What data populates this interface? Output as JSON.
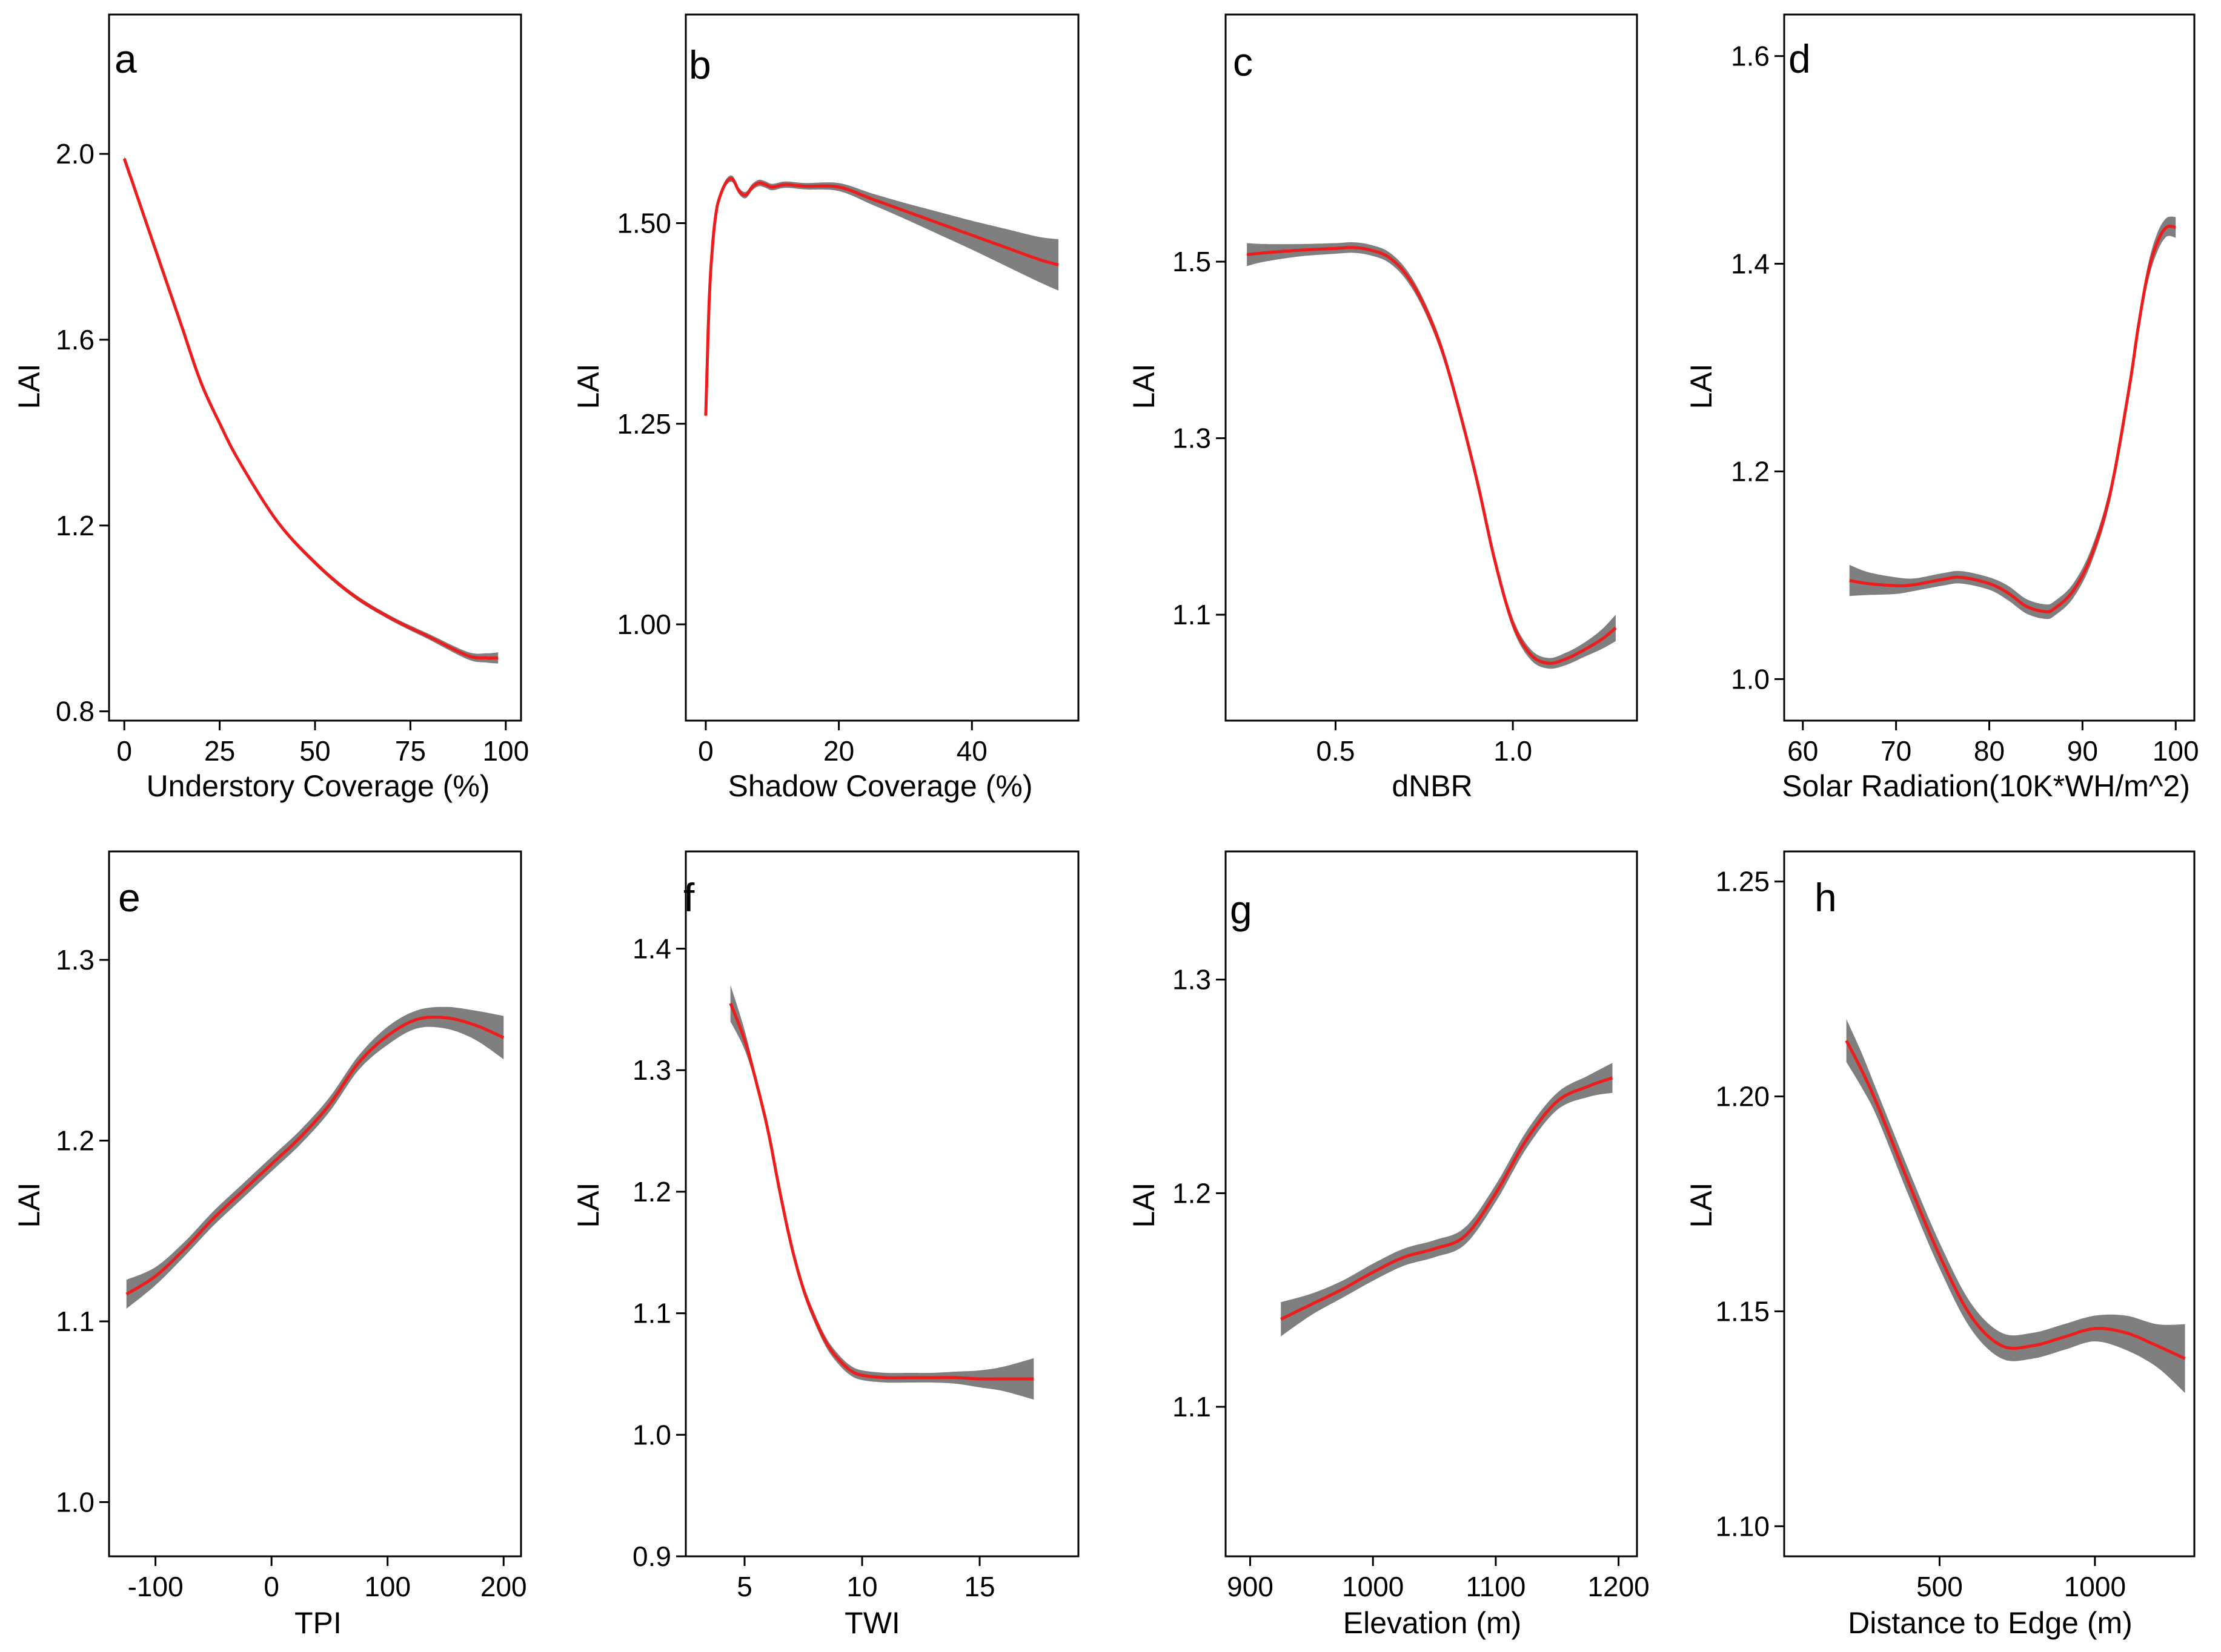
{
  "colors": {
    "curve": "#ee1c1c",
    "band": "#7f7f7f",
    "axis": "#000000",
    "background": "#ffffff"
  },
  "chart_data": [
    {
      "type": "line",
      "panel": "a",
      "xlabel": "Understory Coverage (%)",
      "ylabel": "LAI",
      "xlim": [
        -4,
        104
      ],
      "ylim": [
        0.78,
        2.3
      ],
      "xticks": [
        0,
        25,
        50,
        75,
        100
      ],
      "xtick_labels": [
        "0",
        "25",
        "50",
        "75",
        "100"
      ],
      "yticks": [
        0.8,
        1.2,
        1.6,
        2.0
      ],
      "ytick_labels": [
        "0.8",
        "1.2",
        "1.6",
        "2.0"
      ],
      "x": [
        0,
        5,
        10,
        15,
        20,
        25,
        30,
        40,
        50,
        60,
        70,
        80,
        90,
        95,
        98
      ],
      "y": [
        1.99,
        1.87,
        1.75,
        1.63,
        1.51,
        1.42,
        1.34,
        1.21,
        1.12,
        1.05,
        1.0,
        0.96,
        0.92,
        0.915,
        0.915
      ],
      "band": [
        0.005,
        0.005,
        0.005,
        0.005,
        0.005,
        0.005,
        0.005,
        0.005,
        0.005,
        0.005,
        0.005,
        0.006,
        0.008,
        0.01,
        0.012
      ]
    },
    {
      "type": "line",
      "panel": "b",
      "xlabel": "Shadow Coverage (%)",
      "ylabel": "LAI",
      "xlim": [
        -3,
        56
      ],
      "ylim": [
        0.88,
        1.76
      ],
      "xticks": [
        0,
        20,
        40
      ],
      "xtick_labels": [
        "0",
        "20",
        "40"
      ],
      "yticks": [
        1.0,
        1.25,
        1.5
      ],
      "ytick_labels": [
        "1.00",
        "1.25",
        "1.50"
      ],
      "x": [
        0,
        0.5,
        1,
        1.5,
        2,
        3,
        4,
        5,
        6,
        7,
        8,
        9,
        10,
        12,
        15,
        20,
        25,
        30,
        35,
        40,
        45,
        50,
        53
      ],
      "y": [
        1.26,
        1.4,
        1.47,
        1.51,
        1.53,
        1.55,
        1.555,
        1.54,
        1.535,
        1.545,
        1.55,
        1.548,
        1.545,
        1.548,
        1.546,
        1.545,
        1.53,
        1.515,
        1.5,
        1.485,
        1.47,
        1.455,
        1.448
      ],
      "band": [
        0.008,
        0.006,
        0.005,
        0.005,
        0.004,
        0.004,
        0.004,
        0.004,
        0.004,
        0.004,
        0.004,
        0.004,
        0.004,
        0.004,
        0.004,
        0.005,
        0.007,
        0.01,
        0.014,
        0.018,
        0.023,
        0.028,
        0.032
      ]
    },
    {
      "type": "line",
      "panel": "c",
      "xlabel": "dNBR",
      "ylabel": "LAI",
      "xlim": [
        0.19,
        1.35
      ],
      "ylim": [
        0.98,
        1.78
      ],
      "xticks": [
        0.5,
        1.0
      ],
      "xtick_labels": [
        "0.5",
        "1.0"
      ],
      "yticks": [
        1.1,
        1.3,
        1.5
      ],
      "ytick_labels": [
        "1.1",
        "1.3",
        "1.5"
      ],
      "x": [
        0.25,
        0.3,
        0.4,
        0.5,
        0.55,
        0.6,
        0.65,
        0.7,
        0.75,
        0.8,
        0.85,
        0.9,
        0.95,
        1.0,
        1.05,
        1.1,
        1.15,
        1.2,
        1.25,
        1.29
      ],
      "y": [
        1.508,
        1.51,
        1.513,
        1.515,
        1.516,
        1.513,
        1.505,
        1.485,
        1.45,
        1.4,
        1.33,
        1.25,
        1.16,
        1.09,
        1.055,
        1.045,
        1.05,
        1.06,
        1.072,
        1.085
      ],
      "band": [
        0.013,
        0.01,
        0.007,
        0.006,
        0.006,
        0.006,
        0.006,
        0.006,
        0.006,
        0.006,
        0.006,
        0.006,
        0.006,
        0.006,
        0.006,
        0.006,
        0.007,
        0.008,
        0.011,
        0.015
      ]
    },
    {
      "type": "line",
      "panel": "d",
      "xlabel": "Solar Radiation(10K*WH/m^2)",
      "ylabel": "LAI",
      "xlim": [
        58,
        102
      ],
      "ylim": [
        0.96,
        1.64
      ],
      "xticks": [
        60,
        70,
        80,
        90,
        100
      ],
      "xtick_labels": [
        "60",
        "70",
        "80",
        "90",
        "100"
      ],
      "yticks": [
        1.0,
        1.2,
        1.4,
        1.6
      ],
      "ytick_labels": [
        "1.0",
        "1.2",
        "1.4",
        "1.6"
      ],
      "x": [
        65,
        67,
        70,
        72,
        75,
        77,
        80,
        82,
        84,
        86,
        87,
        89,
        91,
        93,
        95,
        96,
        97,
        98,
        99,
        100
      ],
      "y": [
        1.095,
        1.092,
        1.09,
        1.091,
        1.096,
        1.098,
        1.092,
        1.083,
        1.07,
        1.065,
        1.068,
        1.085,
        1.12,
        1.18,
        1.28,
        1.34,
        1.39,
        1.42,
        1.435,
        1.435
      ],
      "band": [
        0.015,
        0.011,
        0.008,
        0.006,
        0.006,
        0.006,
        0.006,
        0.007,
        0.007,
        0.007,
        0.007,
        0.007,
        0.007,
        0.007,
        0.007,
        0.007,
        0.008,
        0.009,
        0.009,
        0.01
      ]
    },
    {
      "type": "line",
      "panel": "e",
      "xlabel": "TPI",
      "ylabel": "LAI",
      "xlim": [
        -140,
        215
      ],
      "ylim": [
        0.97,
        1.36
      ],
      "xticks": [
        -100,
        0,
        100,
        200
      ],
      "xtick_labels": [
        "-100",
        "0",
        "100",
        "200"
      ],
      "yticks": [
        1.0,
        1.1,
        1.2,
        1.3
      ],
      "ytick_labels": [
        "1.0",
        "1.1",
        "1.2",
        "1.3"
      ],
      "x": [
        -125,
        -100,
        -75,
        -50,
        -25,
        0,
        25,
        50,
        75,
        100,
        125,
        150,
        175,
        200
      ],
      "y": [
        1.115,
        1.125,
        1.14,
        1.157,
        1.172,
        1.187,
        1.202,
        1.22,
        1.243,
        1.258,
        1.267,
        1.268,
        1.264,
        1.257
      ],
      "band": [
        0.008,
        0.005,
        0.004,
        0.004,
        0.004,
        0.004,
        0.004,
        0.004,
        0.004,
        0.005,
        0.005,
        0.006,
        0.008,
        0.012
      ]
    },
    {
      "type": "line",
      "panel": "f",
      "xlabel": "TWI",
      "ylabel": "LAI",
      "xlim": [
        2.5,
        19.2
      ],
      "ylim": [
        0.9,
        1.48
      ],
      "xticks": [
        5,
        10,
        15
      ],
      "xtick_labels": [
        "5",
        "10",
        "15"
      ],
      "yticks": [
        0.9,
        1.0,
        1.1,
        1.2,
        1.3,
        1.4
      ],
      "ytick_labels": [
        "0.9",
        "1.0",
        "1.1",
        "1.2",
        "1.3",
        "1.4"
      ],
      "x": [
        4.4,
        5,
        5.5,
        6,
        6.5,
        7,
        7.5,
        8,
        8.5,
        9,
        9.5,
        10,
        11,
        12,
        13,
        14,
        15,
        16,
        17.3
      ],
      "y": [
        1.355,
        1.325,
        1.29,
        1.25,
        1.2,
        1.155,
        1.12,
        1.095,
        1.075,
        1.062,
        1.053,
        1.049,
        1.047,
        1.047,
        1.047,
        1.047,
        1.046,
        1.046,
        1.046
      ],
      "band": [
        0.015,
        0.008,
        0.004,
        0.004,
        0.004,
        0.004,
        0.004,
        0.004,
        0.004,
        0.004,
        0.004,
        0.004,
        0.004,
        0.004,
        0.004,
        0.005,
        0.007,
        0.01,
        0.017
      ]
    },
    {
      "type": "line",
      "panel": "g",
      "xlabel": "Elevation (m)",
      "ylabel": "LAI",
      "xlim": [
        880,
        1215
      ],
      "ylim": [
        1.03,
        1.36
      ],
      "xticks": [
        900,
        1000,
        1100,
        1200
      ],
      "xtick_labels": [
        "900",
        "1000",
        "1100",
        "1200"
      ],
      "yticks": [
        1.1,
        1.2,
        1.3
      ],
      "ytick_labels": [
        "1.1",
        "1.2",
        "1.3"
      ],
      "x": [
        925,
        950,
        975,
        1000,
        1025,
        1050,
        1075,
        1100,
        1125,
        1150,
        1175,
        1195
      ],
      "y": [
        1.141,
        1.148,
        1.155,
        1.163,
        1.17,
        1.174,
        1.18,
        1.2,
        1.225,
        1.243,
        1.25,
        1.254
      ],
      "band": [
        0.008,
        0.005,
        0.004,
        0.004,
        0.004,
        0.004,
        0.004,
        0.004,
        0.004,
        0.004,
        0.005,
        0.007
      ]
    },
    {
      "type": "line",
      "panel": "h",
      "xlabel": "Distance to Edge (m)",
      "ylabel": "LAI",
      "xlim": [
        0,
        1320
      ],
      "ylim": [
        1.093,
        1.257
      ],
      "xticks": [
        500,
        1000
      ],
      "xtick_labels": [
        "500",
        "1000"
      ],
      "yticks": [
        1.1,
        1.15,
        1.2,
        1.25
      ],
      "ytick_labels": [
        "1.10",
        "1.15",
        "1.20",
        "1.25"
      ],
      "x": [
        200,
        250,
        300,
        400,
        500,
        600,
        700,
        800,
        900,
        1000,
        1100,
        1200,
        1290
      ],
      "y": [
        1.213,
        1.206,
        1.198,
        1.18,
        1.163,
        1.149,
        1.142,
        1.142,
        1.144,
        1.146,
        1.145,
        1.142,
        1.139
      ],
      "band": [
        0.005,
        0.004,
        0.003,
        0.003,
        0.003,
        0.003,
        0.003,
        0.003,
        0.003,
        0.003,
        0.004,
        0.005,
        0.008
      ]
    }
  ]
}
